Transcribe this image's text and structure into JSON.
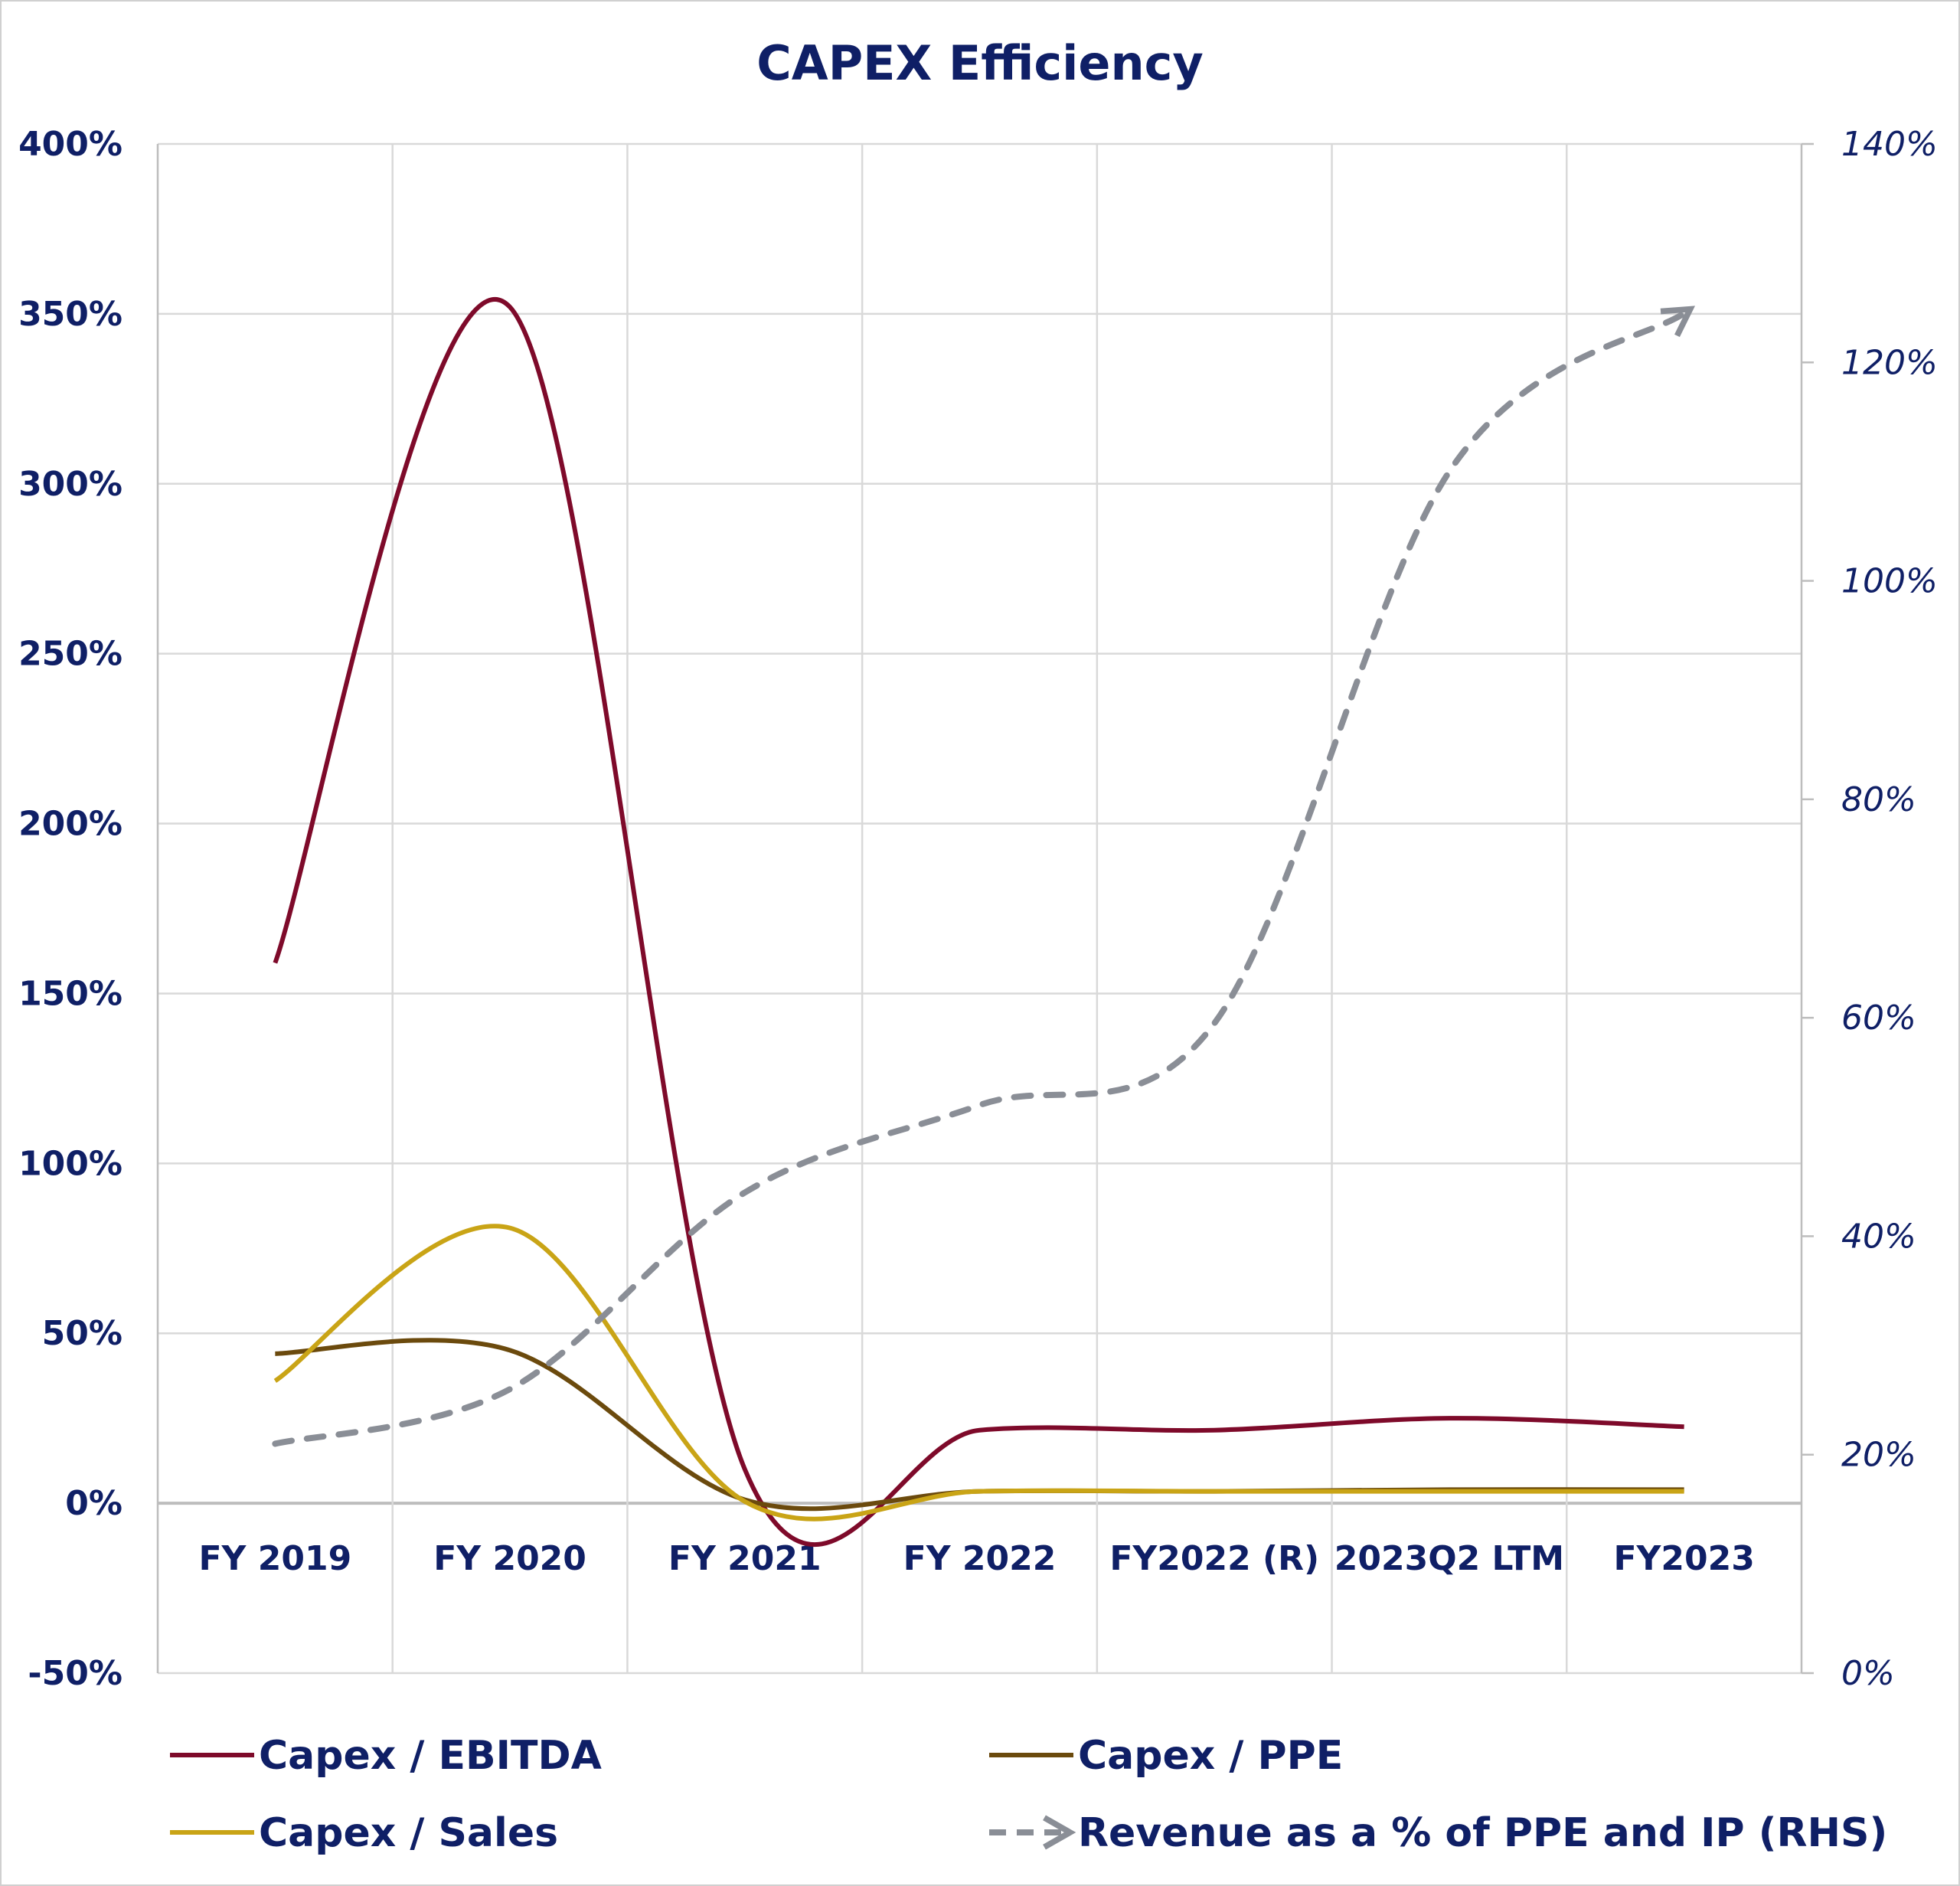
{
  "chart_data": {
    "type": "line",
    "title": "CAPEX Efficiency",
    "categories": [
      "FY 2019",
      "FY 2020",
      "FY 2021",
      "FY 2022",
      "FY2022 (R)",
      "2023Q2 LTM",
      "FY2023"
    ],
    "y_left": {
      "min": -50,
      "max": 400,
      "step": 50,
      "ticks": [
        "400%",
        "350%",
        "300%",
        "250%",
        "200%",
        "150%",
        "100%",
        "50%",
        "0%",
        "-50%"
      ]
    },
    "y_right": {
      "min": 0,
      "max": 140,
      "step": 20,
      "ticks": [
        "140%",
        "120%",
        "100%",
        "80%",
        "60%",
        "40%",
        "20%",
        "0%"
      ]
    },
    "grid": true,
    "legend_position": "bottom",
    "series": [
      {
        "name": "Capex / EBITDA",
        "axis": "left",
        "color": "#7e0a2a",
        "dashed": false,
        "values": [
          159,
          352,
          10,
          21.5,
          21.5,
          25,
          22.5
        ]
      },
      {
        "name": "Capex / PPE",
        "axis": "left",
        "color": "#6b4a0d",
        "dashed": false,
        "values": [
          44,
          45,
          1,
          3.5,
          3.5,
          4,
          4
        ]
      },
      {
        "name": "Capex / Sales",
        "axis": "left",
        "color": "#c9a416",
        "dashed": false,
        "values": [
          36,
          81,
          0.5,
          3.5,
          3.5,
          3.5,
          3.5
        ]
      },
      {
        "name": "Revenue as a % of PPE and IP (RHS)",
        "axis": "right",
        "color": "#8a8e96",
        "dashed": true,
        "values": [
          21,
          26,
          44,
          52,
          59.5,
          110,
          124.5
        ]
      }
    ]
  }
}
